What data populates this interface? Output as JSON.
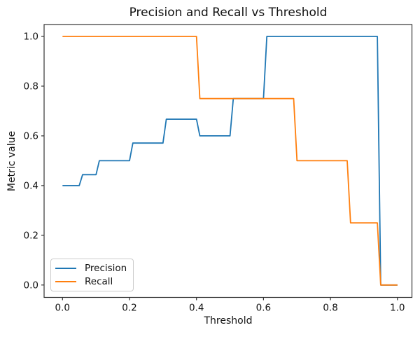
{
  "figure": {
    "title": "Precision and Recall vs Threshold",
    "xlabel": "Threshold",
    "ylabel": "Metric value"
  },
  "chart_data": {
    "type": "line",
    "title": "Precision and Recall vs Threshold",
    "xlabel": "Threshold",
    "ylabel": "Metric value",
    "xlim": [
      -0.05,
      1.05
    ],
    "ylim": [
      -0.05,
      1.05
    ],
    "x_ticks": [
      0.0,
      0.2,
      0.4,
      0.6,
      0.8,
      1.0
    ],
    "y_ticks": [
      0.0,
      0.2,
      0.4,
      0.6,
      0.8,
      1.0
    ],
    "x_tick_labels": [
      "0.0",
      "0.2",
      "0.4",
      "0.6",
      "0.8",
      "1.0"
    ],
    "y_tick_labels": [
      "0.0",
      "0.2",
      "0.4",
      "0.6",
      "0.8",
      "1.0"
    ],
    "grid": false,
    "legend_position": "lower left",
    "series": [
      {
        "name": "Precision",
        "color": "#1f77b4",
        "points": [
          [
            0.0,
            0.4
          ],
          [
            0.05,
            0.4
          ],
          [
            0.06,
            0.444
          ],
          [
            0.1,
            0.444
          ],
          [
            0.11,
            0.5
          ],
          [
            0.2,
            0.5
          ],
          [
            0.21,
            0.571
          ],
          [
            0.3,
            0.571
          ],
          [
            0.31,
            0.667
          ],
          [
            0.4,
            0.667
          ],
          [
            0.41,
            0.6
          ],
          [
            0.5,
            0.6
          ],
          [
            0.51,
            0.75
          ],
          [
            0.6,
            0.75
          ],
          [
            0.61,
            1.0
          ],
          [
            0.94,
            1.0
          ],
          [
            0.95,
            0.0
          ],
          [
            1.0,
            0.0
          ]
        ]
      },
      {
        "name": "Recall",
        "color": "#ff7f0e",
        "points": [
          [
            0.0,
            1.0
          ],
          [
            0.4,
            1.0
          ],
          [
            0.41,
            0.75
          ],
          [
            0.69,
            0.75
          ],
          [
            0.7,
            0.5
          ],
          [
            0.85,
            0.5
          ],
          [
            0.86,
            0.25
          ],
          [
            0.94,
            0.25
          ],
          [
            0.95,
            0.0
          ],
          [
            1.0,
            0.0
          ]
        ]
      }
    ]
  },
  "colors": {
    "axis": "#333333",
    "tick_text": "#111111",
    "precision": "#1f77b4",
    "recall": "#ff7f0e",
    "legend_border": "#cccccc"
  }
}
